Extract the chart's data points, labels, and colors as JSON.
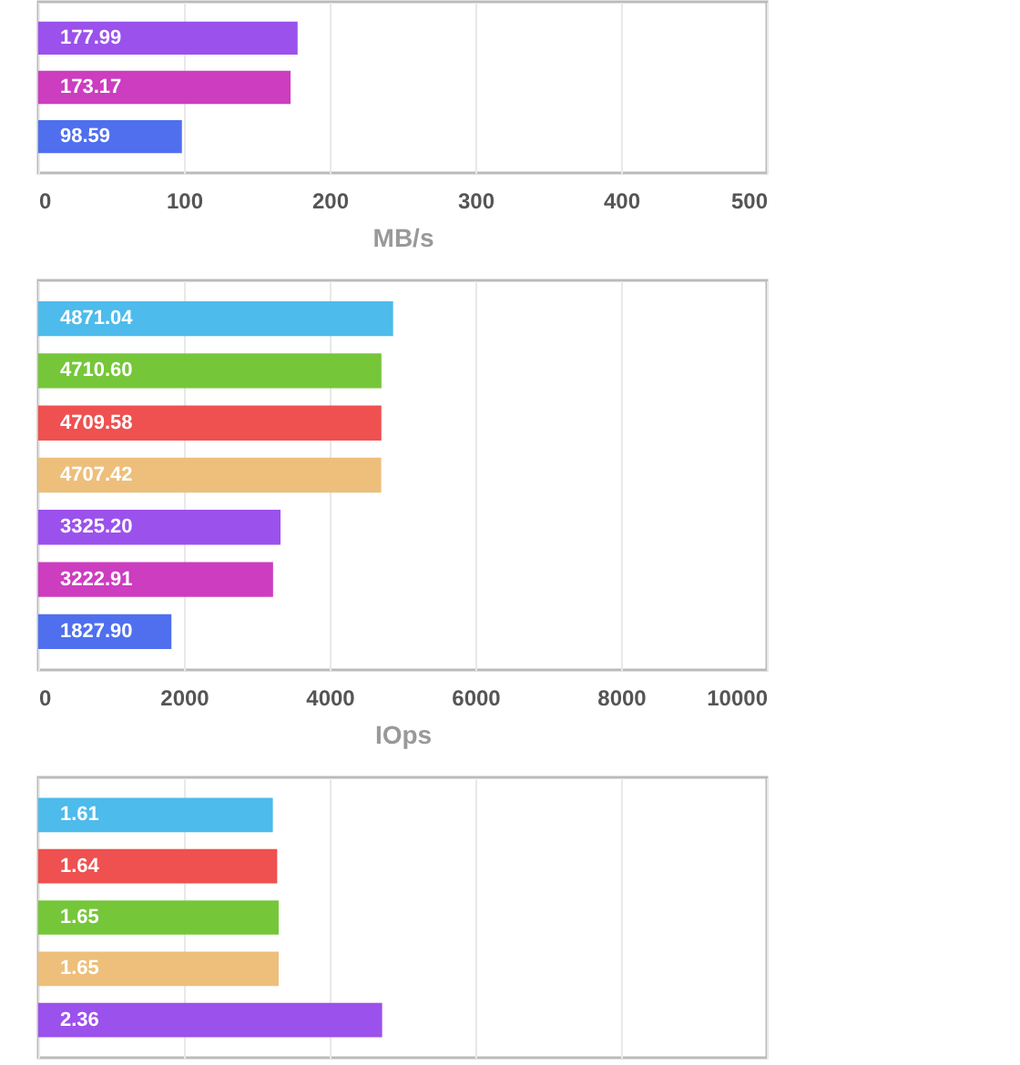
{
  "chart_data": [
    {
      "type": "bar",
      "orientation": "horizontal",
      "categories": [
        null,
        null,
        null
      ],
      "values": [
        177.99,
        173.17,
        98.59
      ],
      "value_labels": [
        "177.99",
        "173.17",
        "98.59"
      ],
      "colors": [
        "#9b51ec",
        "#cc3dbf",
        "#4f6fee"
      ],
      "xlim": [
        0,
        500
      ],
      "xticks": [
        0,
        100,
        200,
        300,
        400,
        500
      ],
      "xlabel": "MB/s",
      "grid": "x",
      "tick_labels": "x"
    },
    {
      "type": "bar",
      "orientation": "horizontal",
      "categories": [
        null,
        null,
        null,
        null,
        null,
        null,
        null
      ],
      "values": [
        4871.04,
        4710.6,
        4709.58,
        4707.42,
        3325.2,
        3222.91,
        1827.9
      ],
      "value_labels": [
        "4871.04",
        "4710.60",
        "4709.58",
        "4707.42",
        "3325.20",
        "3222.91",
        "1827.90"
      ],
      "colors": [
        "#4dbbeb",
        "#76c63a",
        "#ef5050",
        "#edbf7b",
        "#9b51ec",
        "#cc3dbf",
        "#4f6fee"
      ],
      "xlim": [
        0,
        10000
      ],
      "xticks": [
        0,
        2000,
        4000,
        6000,
        8000,
        10000
      ],
      "xlabel": "IOps",
      "grid": "x",
      "tick_labels": "x"
    },
    {
      "type": "bar",
      "orientation": "horizontal",
      "categories": [
        null,
        null,
        null,
        null,
        null
      ],
      "values": [
        1.61,
        1.64,
        1.65,
        1.65,
        2.36
      ],
      "value_labels": [
        "1.61",
        "1.64",
        "1.65",
        "1.65",
        "2.36"
      ],
      "colors": [
        "#4dbbeb",
        "#ef5050",
        "#76c63a",
        "#edbf7b",
        "#9b51ec"
      ],
      "xlim": [
        0,
        5
      ],
      "xticks": [
        {
          "value": 0,
          "label": null
        },
        {
          "value": 1,
          "label": null
        },
        {
          "value": 2,
          "label": null
        },
        {
          "value": 3,
          "label": null
        },
        {
          "value": 4,
          "label": null
        },
        {
          "value": 5,
          "label": null
        }
      ],
      "grid": "x",
      "tick_labels": false
    }
  ]
}
